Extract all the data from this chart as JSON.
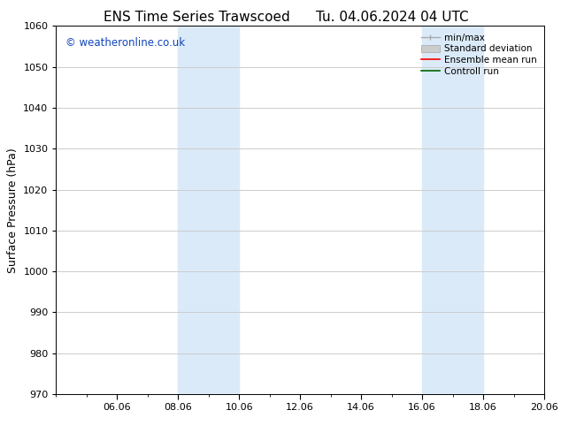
{
  "title_left": "ENS Time Series Trawscoed",
  "title_right": "Tu. 04.06.2024 04 UTC",
  "ylabel": "Surface Pressure (hPa)",
  "ylim": [
    970,
    1060
  ],
  "yticks": [
    970,
    980,
    990,
    1000,
    1010,
    1020,
    1030,
    1040,
    1050,
    1060
  ],
  "xlim": [
    0,
    16
  ],
  "xtick_labels": [
    "06.06",
    "08.06",
    "10.06",
    "12.06",
    "14.06",
    "16.06",
    "18.06",
    "20.06"
  ],
  "xtick_positions": [
    2,
    4,
    6,
    8,
    10,
    12,
    14,
    16
  ],
  "shaded_bands": [
    {
      "x_start": 4,
      "x_end": 6
    },
    {
      "x_start": 12,
      "x_end": 14
    }
  ],
  "shaded_color": "#daeaf8",
  "watermark_text": "© weatheronline.co.uk",
  "watermark_color": "#1144bb",
  "legend_items": [
    {
      "label": "min/max",
      "color": "#aaaaaa",
      "lw": 1.0,
      "style": "minmax"
    },
    {
      "label": "Standard deviation",
      "color": "#cccccc",
      "lw": 5,
      "style": "band"
    },
    {
      "label": "Ensemble mean run",
      "color": "#ff0000",
      "lw": 1.2,
      "style": "line"
    },
    {
      "label": "Controll run",
      "color": "#006600",
      "lw": 1.2,
      "style": "line"
    }
  ],
  "bg_color": "#ffffff",
  "grid_color": "#cccccc",
  "title_fontsize": 11,
  "ylabel_fontsize": 9,
  "tick_fontsize": 8,
  "legend_fontsize": 7.5,
  "watermark_fontsize": 8.5
}
